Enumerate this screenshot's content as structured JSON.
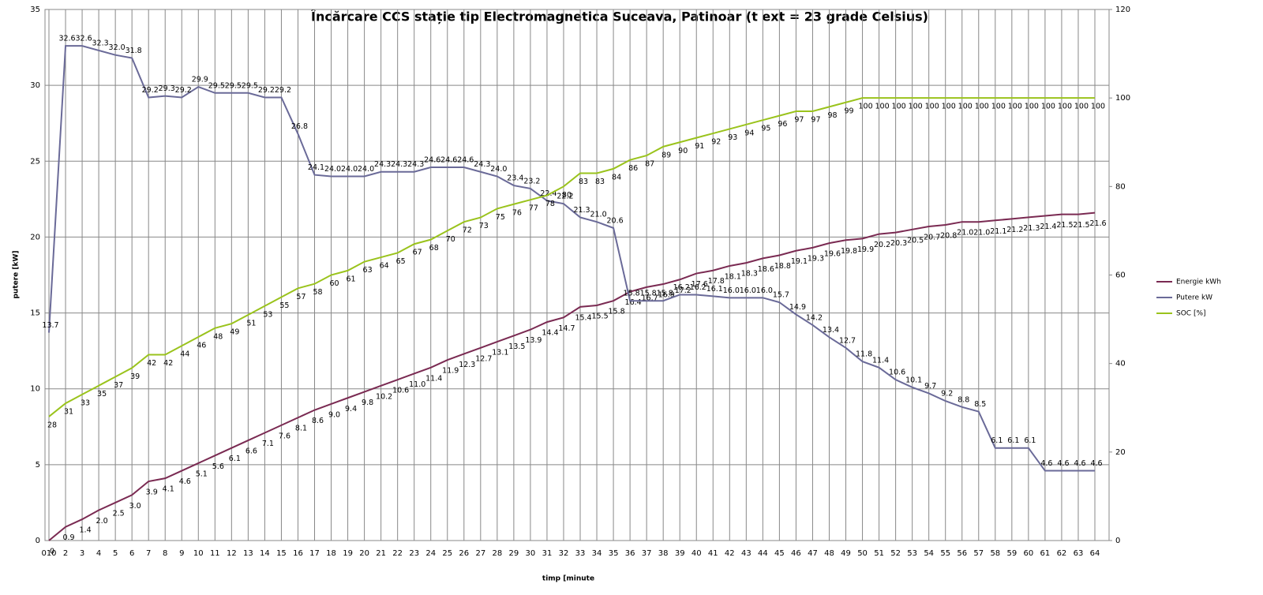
{
  "chart_data": {
    "type": "line",
    "title": "Încărcare CCS stație tip Electromagnetica Suceava, Patinoar (t ext = 23 grade Celsius)",
    "x_label": "timp [minute",
    "y_label": "putere [kW]",
    "categories": [
      "010",
      "2",
      "3",
      "4",
      "5",
      "6",
      "7",
      "8",
      "9",
      "10",
      "11",
      "12",
      "13",
      "14",
      "15",
      "16",
      "17",
      "18",
      "19",
      "20",
      "21",
      "22",
      "23",
      "24",
      "25",
      "26",
      "27",
      "28",
      "29",
      "30",
      "31",
      "32",
      "33",
      "34",
      "35",
      "36",
      "37",
      "38",
      "39",
      "40",
      "41",
      "42",
      "43",
      "44",
      "45",
      "46",
      "47",
      "48",
      "49",
      "50",
      "51",
      "52",
      "53",
      "54",
      "55",
      "56",
      "57",
      "58",
      "59",
      "60",
      "61",
      "62",
      "63",
      "64"
    ],
    "series": [
      {
        "name": "Energie kWh",
        "color": "#7a2a52",
        "values": [
          0,
          0.9,
          1.4,
          2.0,
          2.5,
          3.0,
          3.9,
          4.1,
          4.6,
          5.1,
          5.6,
          6.1,
          6.6,
          7.1,
          7.6,
          8.1,
          8.6,
          9.0,
          9.4,
          9.8,
          10.2,
          10.6,
          11.0,
          11.4,
          11.9,
          12.3,
          12.7,
          13.1,
          13.5,
          13.9,
          14.4,
          14.7,
          15.4,
          15.5,
          15.8,
          16.4,
          16.7,
          16.9,
          17.2,
          17.6,
          17.8,
          18.1,
          18.3,
          18.6,
          18.8,
          19.1,
          19.3,
          19.6,
          19.8,
          19.9,
          20.2,
          20.3,
          20.5,
          20.7,
          20.8,
          21.0,
          21.0,
          21.1,
          21.2,
          21.3,
          21.4,
          21.5,
          21.5,
          21.6
        ],
        "value_labels": [
          "0",
          "0.9",
          "1.4",
          "2.0",
          "2.5",
          "3.0",
          "3.9",
          "4.1",
          "4.6",
          "5.1",
          "5.6",
          "6.1",
          "6.6",
          "7.1",
          "7.6",
          "8.1",
          "8.6",
          "9.0",
          "9.4",
          "9.8",
          "10.2",
          "10.6",
          "11.0",
          "11.4",
          "11.9",
          "12.3",
          "12.7",
          "13.1",
          "13.5",
          "13.9",
          "14.4",
          "14.7",
          "15.4",
          "15.5",
          "15.8",
          "16.4",
          "16.7",
          "16.9",
          "17.2",
          "17.6",
          "17.8",
          "18.1",
          "18.3",
          "18.6",
          "18.8",
          "19.1",
          "19.3",
          "19.6",
          "19.8",
          "19.9",
          "20.2",
          "20.3",
          "20.5",
          "20.7",
          "20.8",
          "21.0",
          "21.0",
          "21.1",
          "21.2",
          "21.3",
          "21.4",
          "21.5",
          "21.5",
          "21.6"
        ]
      },
      {
        "name": "Putere kW",
        "color": "#6a6a98",
        "values": [
          13.7,
          32.6,
          32.6,
          32.3,
          32.0,
          31.8,
          29.2,
          29.3,
          29.2,
          29.9,
          29.5,
          29.5,
          29.5,
          29.2,
          29.2,
          26.8,
          24.1,
          24.0,
          24.0,
          24.0,
          24.3,
          24.3,
          24.3,
          24.6,
          24.6,
          24.6,
          24.3,
          24.0,
          23.4,
          23.2,
          22.4,
          22.2,
          21.3,
          21.0,
          20.6,
          15.8,
          15.8,
          15.8,
          16.2,
          16.2,
          16.1,
          16.0,
          16.0,
          16.0,
          15.7,
          14.9,
          14.2,
          13.4,
          12.7,
          11.8,
          11.4,
          10.6,
          10.1,
          9.7,
          9.2,
          8.8,
          8.5,
          6.1,
          6.1,
          6.1,
          4.6,
          4.6,
          4.6,
          4.6
        ],
        "value_labels": [
          "13.7",
          "32.6",
          "32.6",
          "32.3",
          "32.0",
          "31.8",
          "29.2",
          "29.3",
          "29.2",
          "29.9",
          "29.5",
          "29.5",
          "29.5",
          "29.2",
          "29.2",
          "26.8",
          "24.1",
          "24.0",
          "24.0",
          "24.0",
          "24.3",
          "24.3",
          "24.3",
          "24.6",
          "24.6",
          "24.6",
          "24.3",
          "24.0",
          "23.4",
          "23.2",
          "22.4",
          "22.2",
          "21.3",
          "21.0",
          "20.6",
          "15.8",
          "15.8",
          "15.8",
          "16.2",
          "16.2",
          "16.1",
          "16.0",
          "16.0",
          "16.0",
          "15.7",
          "14.9",
          "14.2",
          "13.4",
          "12.7",
          "11.8",
          "11.4",
          "10.6",
          "10.1",
          "9.7",
          "9.2",
          "8.8",
          "8.5",
          "6.1",
          "6.1",
          "6.1",
          "4.6",
          "4.6",
          "4.6",
          "4.6"
        ]
      },
      {
        "name": "SOC [%]",
        "color": "#9ac31c",
        "axis": "y2",
        "values": [
          28,
          31,
          33,
          35,
          37,
          39,
          42,
          42,
          44,
          46,
          48,
          49,
          51,
          53,
          55,
          57,
          58,
          60,
          61,
          63,
          64,
          65,
          67,
          68,
          70,
          72,
          73,
          75,
          76,
          77,
          78,
          80,
          83,
          83,
          84,
          86,
          87,
          89,
          90,
          91,
          92,
          93,
          94,
          95,
          96,
          97,
          97,
          98,
          99,
          100,
          100,
          100,
          100,
          100,
          100,
          100,
          100,
          100,
          100,
          100,
          100,
          100,
          100,
          100
        ]
      }
    ],
    "ylim": [
      0,
      35
    ],
    "yticks": [
      0,
      5,
      10,
      15,
      20,
      25,
      30,
      35
    ],
    "y2lim": [
      0,
      120
    ],
    "y2ticks": [
      0,
      20,
      40,
      60,
      80,
      100,
      120
    ],
    "grid": true,
    "legend": "right"
  }
}
